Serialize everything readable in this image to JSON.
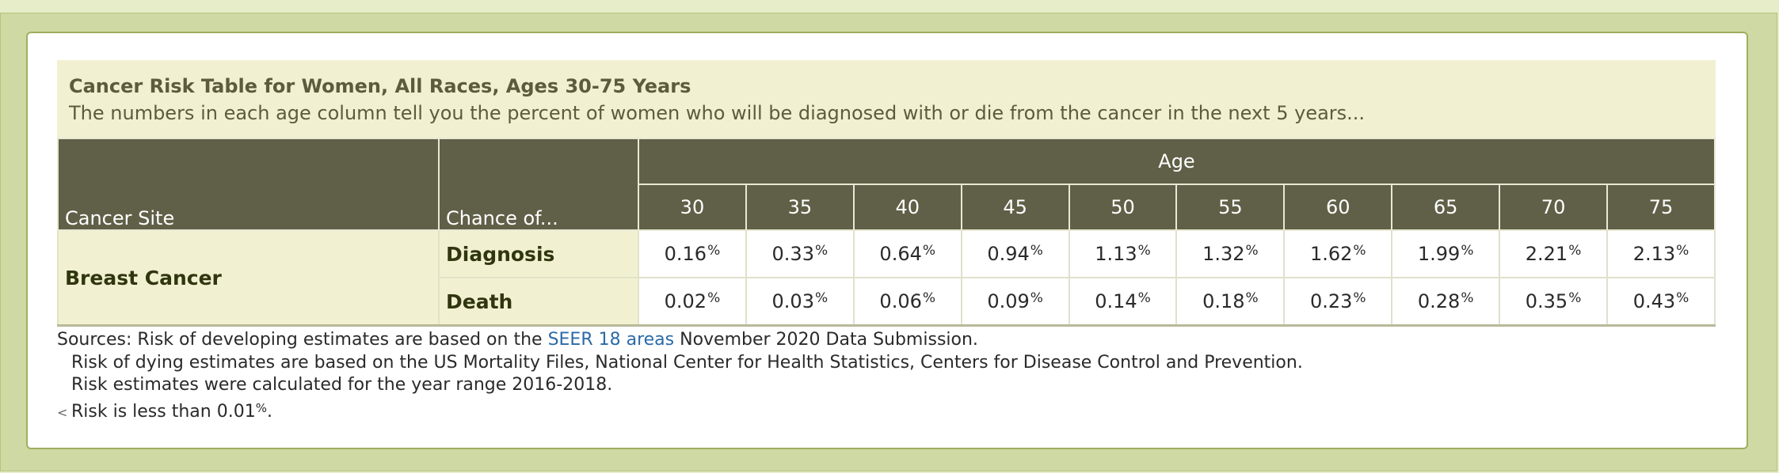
{
  "caption": {
    "title": "Cancer Risk Table for Women, All Races, Ages 30-75 Years",
    "description": "The numbers in each age column tell you the percent of women who will be diagnosed with or die from the cancer in the next 5 years..."
  },
  "table": {
    "col_site": "Cancer Site",
    "col_chance": "Chance of...",
    "age_header": "Age",
    "ages": [
      "30",
      "35",
      "40",
      "45",
      "50",
      "55",
      "60",
      "65",
      "70",
      "75"
    ],
    "pct_symbol": "%",
    "site": "Breast Cancer",
    "rows": [
      {
        "label": "Diagnosis",
        "values": [
          "0.16",
          "0.33",
          "0.64",
          "0.94",
          "1.13",
          "1.32",
          "1.62",
          "1.99",
          "2.21",
          "2.13"
        ]
      },
      {
        "label": "Death",
        "values": [
          "0.02",
          "0.03",
          "0.06",
          "0.09",
          "0.14",
          "0.18",
          "0.23",
          "0.28",
          "0.35",
          "0.43"
        ]
      }
    ]
  },
  "notes": {
    "sources_prefix": "Sources: Risk of developing estimates are based on the ",
    "seer_link": "SEER 18 areas",
    "sources_suffix": " November 2020 Data Submission.",
    "line2": "Risk of dying estimates are based on the US Mortality Files, National Center for Health Statistics, Centers for Disease Control and Prevention.",
    "line3": "Risk estimates were calculated for the year range 2016-2018.",
    "lt_symbol": "<",
    "line4_prefix": "Risk is less than 0.01",
    "line4_pct": "%",
    "line4_suffix": "."
  }
}
